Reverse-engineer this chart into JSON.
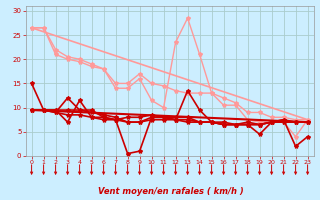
{
  "background_color": "#cceeff",
  "grid_color": "#aacccc",
  "xlabel": "Vent moyen/en rafales ( km/h )",
  "xlabel_color": "#cc0000",
  "tick_color": "#cc0000",
  "ylabel_ticks": [
    0,
    5,
    10,
    15,
    20,
    25,
    30
  ],
  "xlim": [
    -0.5,
    23.5
  ],
  "ylim": [
    0,
    31
  ],
  "series": [
    {
      "x": [
        0,
        1,
        2,
        3,
        4,
        5,
        6,
        7,
        8,
        9,
        10,
        11,
        12,
        13,
        14,
        15,
        16,
        17,
        18,
        19,
        20,
        21,
        22,
        23
      ],
      "y": [
        26.5,
        26.5,
        22,
        20.5,
        20,
        19,
        18,
        15,
        15,
        17,
        15,
        14.5,
        13.5,
        13,
        13,
        13,
        12,
        11,
        9,
        9,
        8,
        8,
        7.5,
        7.5
      ],
      "color": "#ff9999",
      "lw": 1.0,
      "marker": "*",
      "ms": 3
    },
    {
      "x": [
        0,
        1,
        2,
        3,
        4,
        5,
        6,
        7,
        8,
        9,
        10,
        11,
        12,
        13,
        14,
        15,
        16,
        17,
        18,
        19,
        20,
        21,
        22,
        23
      ],
      "y": [
        26.5,
        26.5,
        21,
        20,
        19.5,
        18.5,
        18,
        14,
        14,
        16,
        11.5,
        10,
        23.5,
        28.5,
        21,
        13,
        10.5,
        10.5,
        7.5,
        7,
        7,
        7,
        4,
        7.5
      ],
      "color": "#ff9999",
      "lw": 1.0,
      "marker": "*",
      "ms": 3
    },
    {
      "x": [
        0,
        23
      ],
      "y": [
        26.5,
        7.5
      ],
      "color": "#ff9999",
      "lw": 1.2,
      "marker": null,
      "ms": 0
    },
    {
      "x": [
        0,
        1,
        2,
        3,
        4,
        5,
        6,
        7,
        8,
        9,
        10,
        11,
        12,
        13,
        14,
        15,
        16,
        17,
        18,
        19,
        20,
        21,
        22,
        23
      ],
      "y": [
        15,
        9.5,
        9.5,
        7,
        11.5,
        8,
        7.5,
        7.5,
        0.5,
        1,
        8,
        8,
        7.5,
        13.5,
        9.5,
        7,
        7,
        6.5,
        6.5,
        4.5,
        7,
        7.5,
        2,
        4
      ],
      "color": "#cc0000",
      "lw": 1.2,
      "marker": "*",
      "ms": 3
    },
    {
      "x": [
        0,
        1,
        2,
        3,
        4,
        5,
        6,
        7,
        8,
        9,
        10,
        11,
        12,
        13,
        14,
        15,
        16,
        17,
        18,
        19,
        20,
        21,
        22,
        23
      ],
      "y": [
        9.5,
        9.5,
        9.5,
        9.5,
        9.5,
        9.5,
        8,
        7.5,
        8,
        8,
        8.5,
        8,
        7.5,
        7,
        7,
        7,
        6.5,
        6.5,
        6.5,
        6.5,
        7,
        7,
        7,
        7
      ],
      "color": "#cc0000",
      "lw": 1.2,
      "marker": "*",
      "ms": 3
    },
    {
      "x": [
        0,
        1,
        2,
        3,
        4,
        5,
        6,
        7,
        8,
        9,
        10,
        11,
        12,
        13,
        14,
        15,
        16,
        17,
        18,
        19,
        20,
        21,
        22,
        23
      ],
      "y": [
        9.5,
        9.5,
        9,
        8.5,
        8.5,
        8,
        8,
        7.5,
        7,
        7,
        7.5,
        7.5,
        7.5,
        7.5,
        7,
        7,
        6.5,
        6.5,
        6.5,
        6.5,
        7,
        7,
        7,
        7
      ],
      "color": "#cc0000",
      "lw": 1.2,
      "marker": "*",
      "ms": 3
    },
    {
      "x": [
        0,
        1,
        2,
        3,
        4,
        5,
        6,
        7,
        8,
        9,
        10,
        11,
        12,
        13,
        14,
        15,
        16,
        17,
        18,
        19,
        20,
        21,
        22,
        23
      ],
      "y": [
        9.5,
        9.5,
        9,
        12,
        9.5,
        9,
        8.5,
        8,
        7,
        7,
        8,
        8,
        8,
        8,
        7,
        7,
        6.5,
        6.5,
        7,
        6.5,
        7,
        7.5,
        7,
        7
      ],
      "color": "#cc0000",
      "lw": 1.2,
      "marker": "*",
      "ms": 3
    },
    {
      "x": [
        0,
        23
      ],
      "y": [
        9.5,
        7
      ],
      "color": "#cc0000",
      "lw": 1.5,
      "marker": null,
      "ms": 0
    }
  ],
  "wind_arrows_x": [
    0,
    1,
    2,
    3,
    4,
    5,
    6,
    7,
    8,
    9,
    10,
    11,
    12,
    13,
    14,
    15,
    16,
    17,
    18,
    19,
    20,
    21,
    22,
    23
  ]
}
